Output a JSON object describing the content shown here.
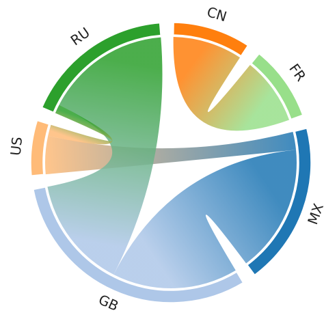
{
  "chart_data": {
    "type": "chord",
    "groups": [
      {
        "name": "CN",
        "color": "#ff7f0e"
      },
      {
        "name": "FR",
        "color": "#98df8a"
      },
      {
        "name": "MX",
        "color": "#1f77b4"
      },
      {
        "name": "GB",
        "color": "#aec7e8"
      },
      {
        "name": "US",
        "color": "#ffbb78"
      },
      {
        "name": "RU",
        "color": "#2ca02c"
      }
    ],
    "matrix": [
      [
        0,
        31,
        0,
        0,
        0,
        0
      ],
      [
        30,
        0,
        0,
        0,
        0,
        0
      ],
      [
        0,
        0,
        0,
        57,
        8,
        0
      ],
      [
        0,
        0,
        56,
        0,
        0,
        50
      ],
      [
        0,
        0,
        17,
        0,
        0,
        5
      ],
      [
        0,
        0,
        0,
        56,
        4,
        0
      ]
    ]
  }
}
